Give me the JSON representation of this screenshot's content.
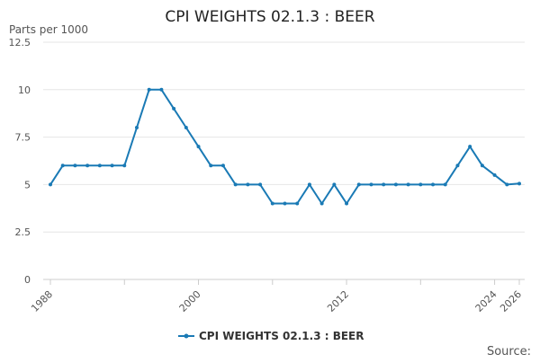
{
  "chart_data": {
    "type": "line",
    "title": "CPI WEIGHTS 02.1.3 : BEER",
    "ylabel": "Parts per 1000",
    "source": "Source:",
    "ylim": [
      0,
      12.5
    ],
    "yticks": [
      0,
      2.5,
      5,
      7.5,
      10,
      12.5
    ],
    "ytick_labels": [
      "0",
      "2.5",
      "5",
      "7.5",
      "10",
      "12.5"
    ],
    "xlim": [
      1988,
      2026
    ],
    "xticks_labeled": [
      1988,
      2000,
      2012,
      2024,
      2026
    ],
    "xticks_minor": [
      1988,
      1994,
      2000,
      2006,
      2012,
      2018,
      2024,
      2026
    ],
    "grid": true,
    "legend_position": "bottom",
    "accent_color": "#1a7ab5",
    "series": [
      {
        "name": "CPI WEIGHTS 02.1.3 : BEER",
        "color": "#1a7ab5",
        "x": [
          1988,
          1989,
          1990,
          1991,
          1992,
          1993,
          1994,
          1995,
          1996,
          1997,
          1998,
          1999,
          2000,
          2001,
          2002,
          2003,
          2004,
          2005,
          2006,
          2007,
          2008,
          2009,
          2010,
          2011,
          2012,
          2013,
          2014,
          2015,
          2016,
          2017,
          2018,
          2019,
          2020,
          2021,
          2022,
          2023,
          2024,
          2025,
          2026
        ],
        "y": [
          5,
          6,
          6,
          6,
          6,
          6,
          6,
          8,
          10,
          10,
          9,
          8,
          7,
          6,
          6,
          5,
          5,
          5,
          4,
          4,
          4,
          5,
          4,
          5,
          4,
          5,
          5,
          5,
          5,
          5,
          5,
          5,
          5,
          6,
          7,
          6,
          5.5,
          5,
          5.05
        ]
      }
    ]
  }
}
